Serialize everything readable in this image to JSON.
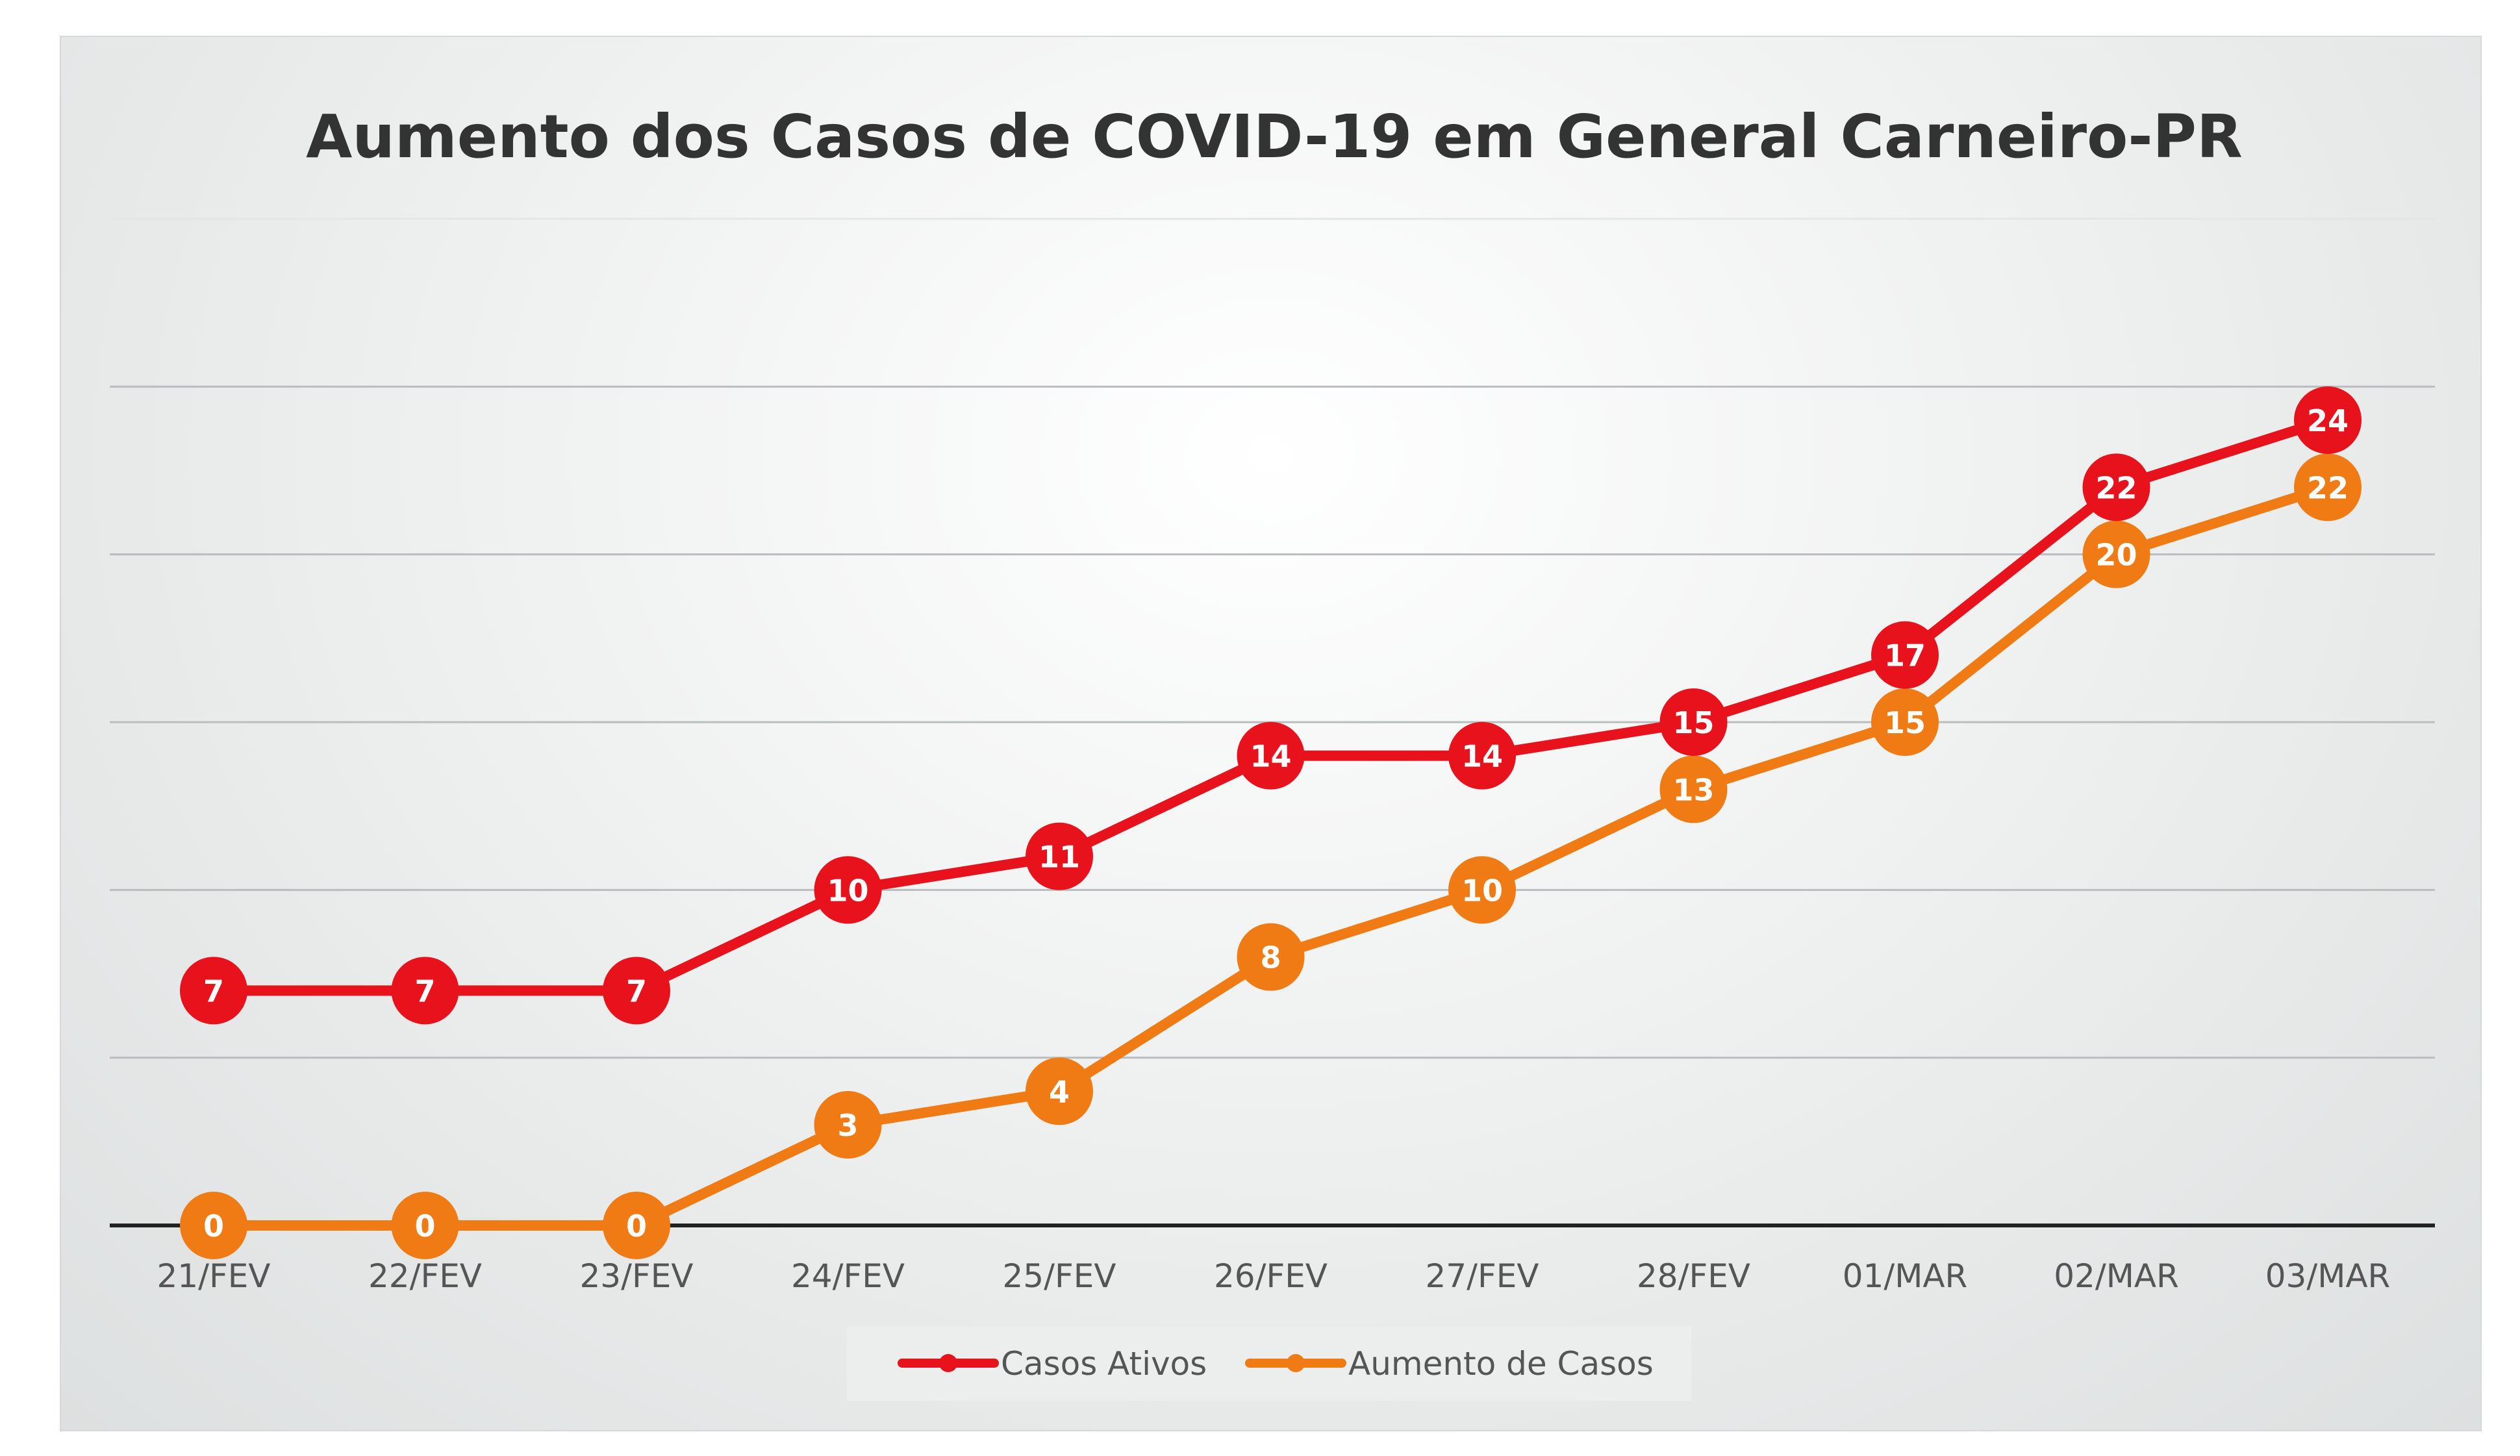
{
  "chart_data": {
    "type": "line",
    "title": "Aumento dos Casos de COVID-19 em General Carneiro-PR",
    "xlabel": "",
    "ylabel": "",
    "ylim": [
      0,
      30
    ],
    "grid": true,
    "legend_position": "bottom",
    "categories": [
      "21/FEV",
      "22/FEV",
      "23/FEV",
      "24/FEV",
      "25/FEV",
      "26/FEV",
      "27/FEV",
      "28/FEV",
      "01/MAR",
      "02/MAR",
      "03/MAR"
    ],
    "series": [
      {
        "name": "Casos Ativos",
        "color": "#e8121c",
        "values": [
          7,
          7,
          7,
          10,
          11,
          14,
          14,
          15,
          17,
          22,
          24
        ]
      },
      {
        "name": "Aumento de Casos",
        "color": "#f07b14",
        "values": [
          0,
          0,
          0,
          3,
          4,
          8,
          10,
          13,
          15,
          20,
          22
        ]
      }
    ]
  }
}
